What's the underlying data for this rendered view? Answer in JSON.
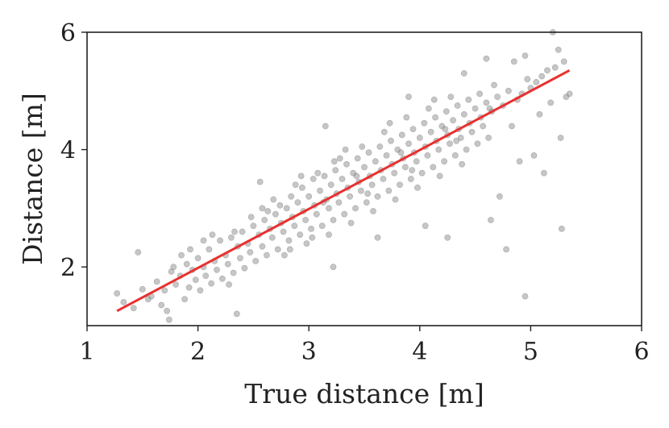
{
  "chart_data": {
    "type": "scatter",
    "title": "",
    "xlabel": "True distance [m]",
    "ylabel": "Distance [m]",
    "xlim": [
      1,
      6
    ],
    "ylim": [
      1,
      6
    ],
    "xticks": [
      1,
      2,
      3,
      4,
      5,
      6
    ],
    "yticks": [
      2,
      4,
      6
    ],
    "grid": false,
    "legend": "none",
    "point_color": "#808080",
    "line_color": "#e8312f",
    "points": [
      [
        1.27,
        1.55
      ],
      [
        1.33,
        1.4
      ],
      [
        1.42,
        1.3
      ],
      [
        1.46,
        2.25
      ],
      [
        1.5,
        1.62
      ],
      [
        1.58,
        1.5
      ],
      [
        1.63,
        1.75
      ],
      [
        1.67,
        1.35
      ],
      [
        1.7,
        1.6
      ],
      [
        1.72,
        1.25
      ],
      [
        1.74,
        1.1
      ],
      [
        1.76,
        1.92
      ],
      [
        1.8,
        1.7
      ],
      [
        1.84,
        1.85
      ],
      [
        1.88,
        1.45
      ],
      [
        1.9,
        2.05
      ],
      [
        1.92,
        1.65
      ],
      [
        1.95,
        1.95
      ],
      [
        1.98,
        1.78
      ],
      [
        2.0,
        2.15
      ],
      [
        2.02,
        1.6
      ],
      [
        2.05,
        2.0
      ],
      [
        2.07,
        1.85
      ],
      [
        2.1,
        2.3
      ],
      [
        2.12,
        1.72
      ],
      [
        2.15,
        2.1
      ],
      [
        2.17,
        1.95
      ],
      [
        2.2,
        2.45
      ],
      [
        2.22,
        1.8
      ],
      [
        2.25,
        2.2
      ],
      [
        2.27,
        2.05
      ],
      [
        2.3,
        2.5
      ],
      [
        2.32,
        1.9
      ],
      [
        2.35,
        1.2
      ],
      [
        2.36,
        2.35
      ],
      [
        2.38,
        2.15
      ],
      [
        2.4,
        2.6
      ],
      [
        2.42,
        1.98
      ],
      [
        2.45,
        2.4
      ],
      [
        2.47,
        2.25
      ],
      [
        2.5,
        2.7
      ],
      [
        2.52,
        2.1
      ],
      [
        2.55,
        2.55
      ],
      [
        2.56,
        3.45
      ],
      [
        2.58,
        2.35
      ],
      [
        2.6,
        2.8
      ],
      [
        2.62,
        2.2
      ],
      [
        2.65,
        2.65
      ],
      [
        2.67,
        2.5
      ],
      [
        2.7,
        2.9
      ],
      [
        2.72,
        2.3
      ],
      [
        2.74,
        3.05
      ],
      [
        2.75,
        2.75
      ],
      [
        2.77,
        2.6
      ],
      [
        2.8,
        3.0
      ],
      [
        2.82,
        2.45
      ],
      [
        2.84,
        3.2
      ],
      [
        2.85,
        2.85
      ],
      [
        2.87,
        2.7
      ],
      [
        2.9,
        3.1
      ],
      [
        2.92,
        2.55
      ],
      [
        2.94,
        3.35
      ],
      [
        2.95,
        2.95
      ],
      [
        2.97,
        2.8
      ],
      [
        3.0,
        3.2
      ],
      [
        3.02,
        2.65
      ],
      [
        3.04,
        3.5
      ],
      [
        3.05,
        3.05
      ],
      [
        3.07,
        2.9
      ],
      [
        3.1,
        3.3
      ],
      [
        3.12,
        2.7
      ],
      [
        3.14,
        3.55
      ],
      [
        3.15,
        4.4
      ],
      [
        3.16,
        3.15
      ],
      [
        3.18,
        3.0
      ],
      [
        3.2,
        3.4
      ],
      [
        3.22,
        2.8
      ],
      [
        3.24,
        3.65
      ],
      [
        3.25,
        3.25
      ],
      [
        3.27,
        3.1
      ],
      [
        3.3,
        3.5
      ],
      [
        3.32,
        2.9
      ],
      [
        3.34,
        3.75
      ],
      [
        3.35,
        3.35
      ],
      [
        3.37,
        3.2
      ],
      [
        3.4,
        3.6
      ],
      [
        3.42,
        3.0
      ],
      [
        3.44,
        3.85
      ],
      [
        3.45,
        3.45
      ],
      [
        3.47,
        3.3
      ],
      [
        3.5,
        3.7
      ],
      [
        3.52,
        3.1
      ],
      [
        3.54,
        3.95
      ],
      [
        3.55,
        3.55
      ],
      [
        3.57,
        3.4
      ],
      [
        3.6,
        3.8
      ],
      [
        3.62,
        3.2
      ],
      [
        3.64,
        4.05
      ],
      [
        3.65,
        3.65
      ],
      [
        3.67,
        3.5
      ],
      [
        3.7,
        3.9
      ],
      [
        3.72,
        3.3
      ],
      [
        3.74,
        4.15
      ],
      [
        3.75,
        3.75
      ],
      [
        3.77,
        3.6
      ],
      [
        3.8,
        4.0
      ],
      [
        3.82,
        3.4
      ],
      [
        3.84,
        4.25
      ],
      [
        3.85,
        3.85
      ],
      [
        3.87,
        3.7
      ],
      [
        3.9,
        4.1
      ],
      [
        3.92,
        3.5
      ],
      [
        3.94,
        4.35
      ],
      [
        3.95,
        3.95
      ],
      [
        3.97,
        3.8
      ],
      [
        4.0,
        4.2
      ],
      [
        4.02,
        3.6
      ],
      [
        4.04,
        4.45
      ],
      [
        4.05,
        4.05
      ],
      [
        4.07,
        3.9
      ],
      [
        4.1,
        4.3
      ],
      [
        4.12,
        3.7
      ],
      [
        4.14,
        4.55
      ],
      [
        4.15,
        4.15
      ],
      [
        4.17,
        4.0
      ],
      [
        4.2,
        4.4
      ],
      [
        4.22,
        3.8
      ],
      [
        4.24,
        4.65
      ],
      [
        4.25,
        4.25
      ],
      [
        4.27,
        4.1
      ],
      [
        4.3,
        4.5
      ],
      [
        4.32,
        3.9
      ],
      [
        4.34,
        4.75
      ],
      [
        4.35,
        4.35
      ],
      [
        4.37,
        4.2
      ],
      [
        4.4,
        4.6
      ],
      [
        4.42,
        4.0
      ],
      [
        4.44,
        4.85
      ],
      [
        4.45,
        4.45
      ],
      [
        4.47,
        4.3
      ],
      [
        4.5,
        4.7
      ],
      [
        4.52,
        4.1
      ],
      [
        4.54,
        4.95
      ],
      [
        4.55,
        4.55
      ],
      [
        4.57,
        4.4
      ],
      [
        4.6,
        4.8
      ],
      [
        4.62,
        4.2
      ],
      [
        4.64,
        2.8
      ],
      [
        4.65,
        4.65
      ],
      [
        4.67,
        5.1
      ],
      [
        4.7,
        4.9
      ],
      [
        4.72,
        3.2
      ],
      [
        4.75,
        4.75
      ],
      [
        4.78,
        2.3
      ],
      [
        4.8,
        5.0
      ],
      [
        4.83,
        4.4
      ],
      [
        4.85,
        5.5
      ],
      [
        4.88,
        4.85
      ],
      [
        4.9,
        3.8
      ],
      [
        4.92,
        4.95
      ],
      [
        4.95,
        1.5
      ],
      [
        4.97,
        5.2
      ],
      [
        5.0,
        5.05
      ],
      [
        5.03,
        3.9
      ],
      [
        5.05,
        5.15
      ],
      [
        5.08,
        4.6
      ],
      [
        5.1,
        5.25
      ],
      [
        5.12,
        3.6
      ],
      [
        5.15,
        5.35
      ],
      [
        5.18,
        4.8
      ],
      [
        5.2,
        6.0
      ],
      [
        5.22,
        5.4
      ],
      [
        5.25,
        5.7
      ],
      [
        5.27,
        4.2
      ],
      [
        5.28,
        2.65
      ],
      [
        5.3,
        5.5
      ],
      [
        5.32,
        4.9
      ],
      [
        5.35,
        4.95
      ],
      [
        1.55,
        1.45
      ],
      [
        1.85,
        2.2
      ],
      [
        2.05,
        2.45
      ],
      [
        2.28,
        1.7
      ],
      [
        2.48,
        2.85
      ],
      [
        2.68,
        3.15
      ],
      [
        2.88,
        3.4
      ],
      [
        3.08,
        3.6
      ],
      [
        3.28,
        3.85
      ],
      [
        3.48,
        4.05
      ],
      [
        3.68,
        4.3
      ],
      [
        3.88,
        4.55
      ],
      [
        4.08,
        4.7
      ],
      [
        4.28,
        4.9
      ],
      [
        2.78,
        2.2
      ],
      [
        2.98,
        2.4
      ],
      [
        3.18,
        2.55
      ],
      [
        3.38,
        2.75
      ],
      [
        3.58,
        2.95
      ],
      [
        3.78,
        3.15
      ],
      [
        3.98,
        3.35
      ],
      [
        4.18,
        3.55
      ],
      [
        4.38,
        3.75
      ],
      [
        3.22,
        2.0
      ],
      [
        3.62,
        2.5
      ],
      [
        4.05,
        2.7
      ],
      [
        4.25,
        2.5
      ],
      [
        3.9,
        4.9
      ],
      [
        4.4,
        5.3
      ],
      [
        4.6,
        5.55
      ],
      [
        4.95,
        5.6
      ],
      [
        2.58,
        3.0
      ],
      [
        2.93,
        3.55
      ],
      [
        3.33,
        4.0
      ],
      [
        3.73,
        4.45
      ],
      [
        4.13,
        4.85
      ],
      [
        3.13,
        3.1
      ],
      [
        3.43,
        3.55
      ],
      [
        3.83,
        3.95
      ],
      [
        4.23,
        4.35
      ],
      [
        4.63,
        4.7
      ],
      [
        2.33,
        2.6
      ],
      [
        2.13,
        2.55
      ],
      [
        1.93,
        2.3
      ],
      [
        1.78,
        2.0
      ],
      [
        2.63,
        2.95
      ],
      [
        2.83,
        2.3
      ],
      [
        3.03,
        2.5
      ],
      [
        3.23,
        3.8
      ],
      [
        3.53,
        3.25
      ],
      [
        3.93,
        3.65
      ],
      [
        4.33,
        4.15
      ]
    ],
    "fit_line": {
      "x": [
        1.27,
        5.35
      ],
      "y": [
        1.25,
        5.35
      ]
    }
  }
}
